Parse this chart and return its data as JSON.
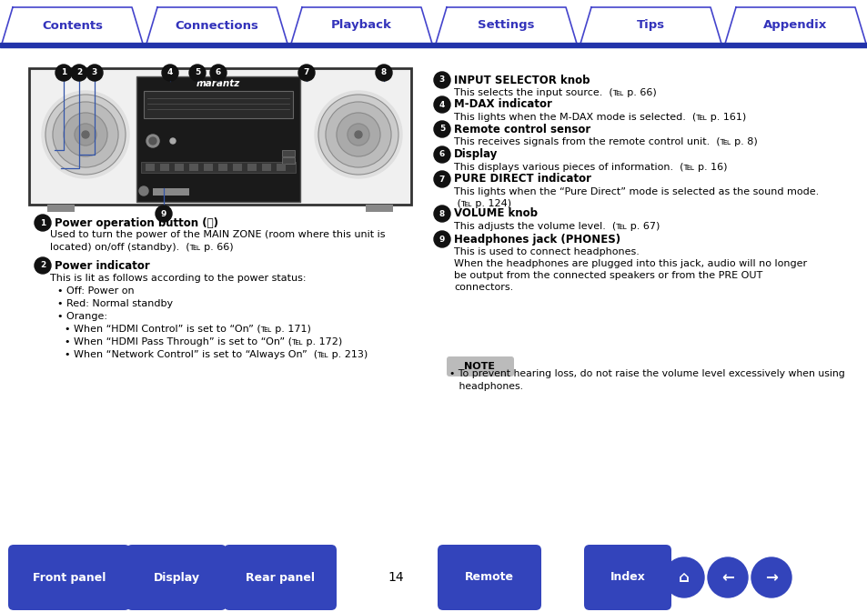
{
  "tab_labels": [
    "Contents",
    "Connections",
    "Playback",
    "Settings",
    "Tips",
    "Appendix"
  ],
  "tab_text_color": "#3333bb",
  "tab_border_color": "#4444cc",
  "header_line_color": "#2233aa",
  "bg_color": "#ffffff",
  "page_number": "14",
  "bottom_buttons": [
    "Front panel",
    "Display",
    "Rear panel",
    "Remote",
    "Index"
  ],
  "btn_color": "#3344bb",
  "btn_text_color": "#ffffff",
  "circle_color": "#111111",
  "text_color": "#000000",
  "note_bg": "#bbbbbb",
  "right_items": [
    {
      "num": "3",
      "title": "INPUT SELECTOR knob",
      "lines": [
        "This selects the input source.  (℡ p. 66)"
      ]
    },
    {
      "num": "4",
      "title": "M-DAX indicator",
      "lines": [
        "This lights when the M-DAX mode is selected.  (℡ p. 161)"
      ]
    },
    {
      "num": "5",
      "title": "Remote control sensor",
      "lines": [
        "This receives signals from the remote control unit.  (℡ p. 8)"
      ]
    },
    {
      "num": "6",
      "title": "Display",
      "lines": [
        "This displays various pieces of information.  (℡ p. 16)"
      ]
    },
    {
      "num": "7",
      "title": "PURE DIRECT indicator",
      "lines": [
        "This lights when the “Pure Direct” mode is selected as the sound mode.",
        " (℡ p. 124)"
      ]
    },
    {
      "num": "8",
      "title": "VOLUME knob",
      "lines": [
        "This adjusts the volume level.  (℡ p. 67)"
      ]
    },
    {
      "num": "9",
      "title": "Headphones jack (PHONES)",
      "lines": [
        "This is used to connect headphones.",
        "When the headphones are plugged into this jack, audio will no longer",
        "be output from the connected speakers or from the PRE OUT",
        "connectors."
      ]
    }
  ],
  "left_item1_title": "Power operation button (⏻)",
  "left_item1_lines": [
    "Used to turn the power of the MAIN ZONE (room where this unit is",
    "located) on/off (standby).  (℡ p. 66)"
  ],
  "left_item2_title": "Power indicator",
  "left_item2_lines": [
    "This is lit as follows according to the power status:",
    "• Off: Power on",
    "• Red: Normal standby",
    "• Orange:",
    "  • When “HDMI Control” is set to “On” (℡ p. 171)",
    "  • When “HDMI Pass Through” is set to “On” (℡ p. 172)",
    "  • When “Network Control” is set to “Always On”  (℡ p. 213)"
  ],
  "note_line1": "• To prevent hearing loss, do not raise the volume level excessively when using",
  "note_line2": "   headphones."
}
